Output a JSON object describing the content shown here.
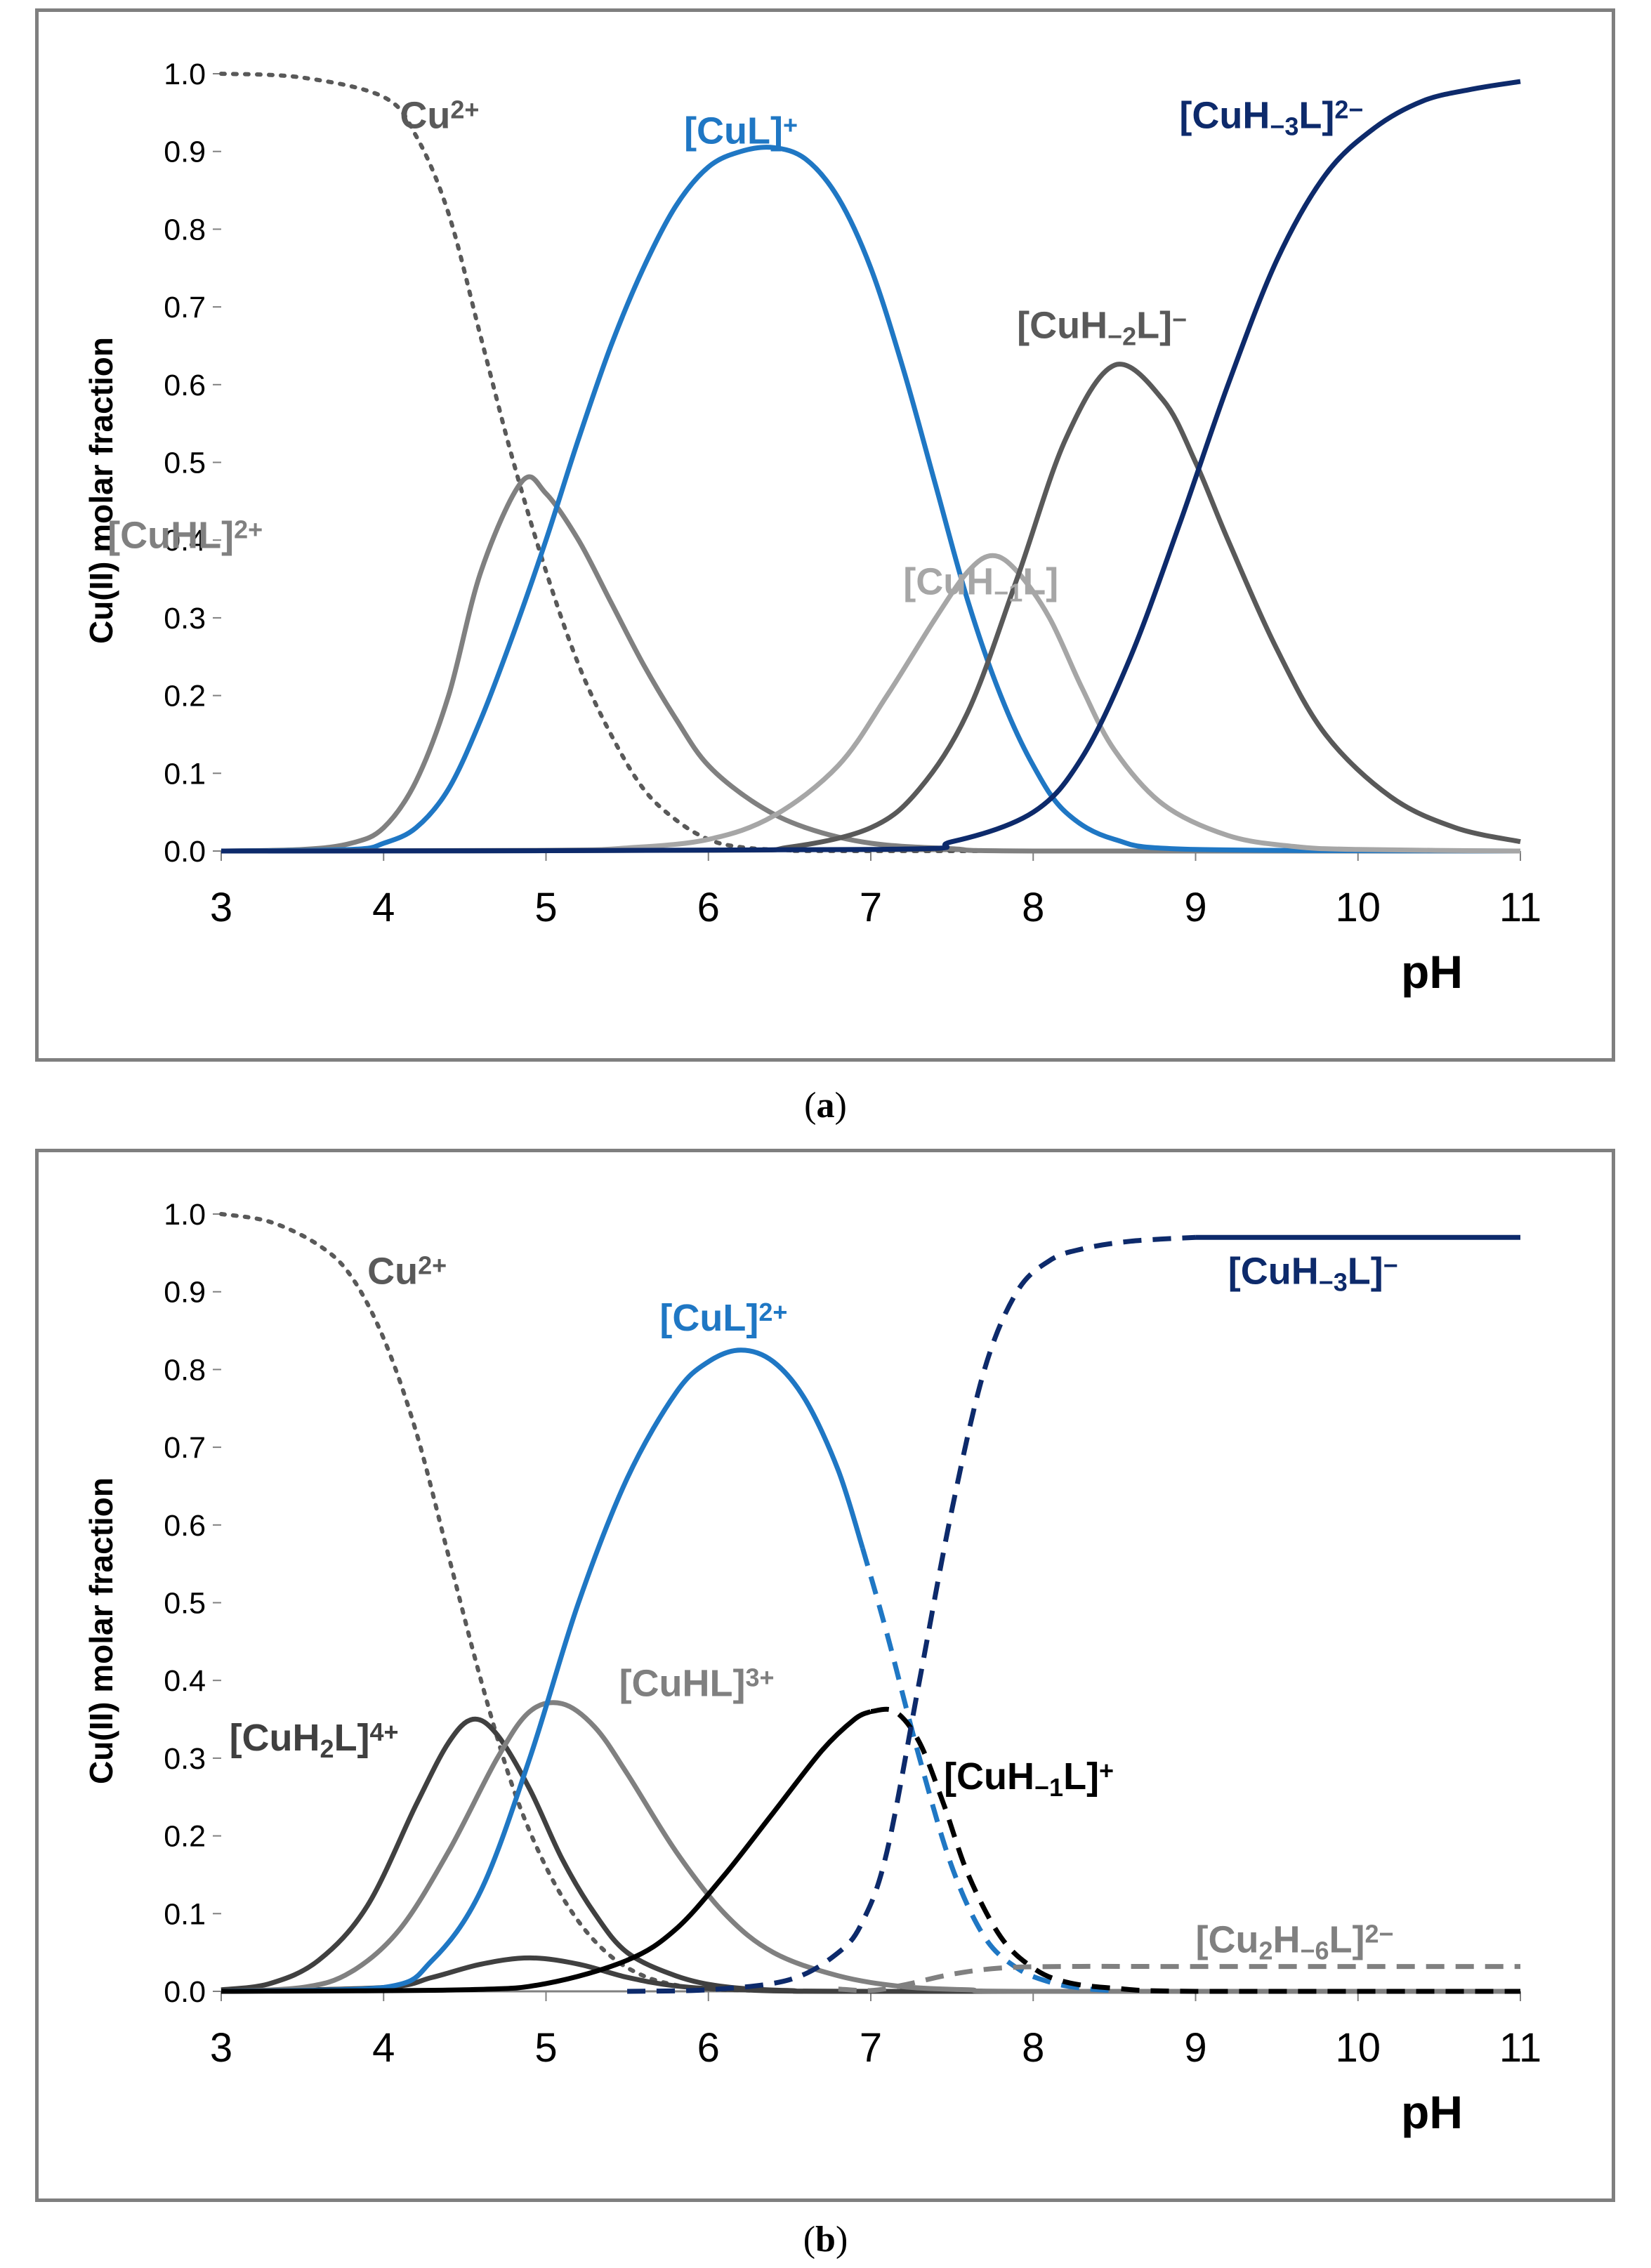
{
  "panels": [
    {
      "caption": "(a)",
      "caption_bold": "a",
      "chart_data": {
        "type": "line",
        "xlabel": "pH",
        "ylabel": "Cu(II) molar fraction",
        "xlim": [
          3,
          11
        ],
        "ylim": [
          0,
          1.0
        ],
        "xticks": [
          "3",
          "4",
          "5",
          "6",
          "7",
          "8",
          "9",
          "10",
          "11"
        ],
        "yticks": [
          "0.0",
          "0.1",
          "0.2",
          "0.3",
          "0.4",
          "0.5",
          "0.6",
          "0.7",
          "0.8",
          "0.9",
          "1.0"
        ],
        "series": [
          {
            "name": "Cu2+",
            "label_main": "Cu",
            "label_sup": "2+",
            "color": "#595959",
            "style": "dotted",
            "x": [
              3,
              3.5,
              4,
              4.2,
              4.4,
              4.6,
              4.8,
              5,
              5.2,
              5.4,
              5.6,
              5.8,
              6,
              6.2,
              6.5,
              7,
              11
            ],
            "y": [
              1.0,
              0.995,
              0.97,
              0.92,
              0.82,
              0.66,
              0.5,
              0.36,
              0.24,
              0.15,
              0.08,
              0.04,
              0.015,
              0.005,
              0.001,
              0,
              0
            ]
          },
          {
            "name": "[CuHL]2+",
            "label_main": "[CuHL]",
            "label_sup": "2+",
            "color": "#808080",
            "style": "solid",
            "x": [
              3,
              3.5,
              3.8,
              4,
              4.2,
              4.4,
              4.6,
              4.85,
              5,
              5.2,
              5.4,
              5.6,
              5.8,
              6,
              6.3,
              6.6,
              7,
              7.5,
              8,
              11
            ],
            "y": [
              0,
              0.002,
              0.01,
              0.03,
              0.09,
              0.2,
              0.36,
              0.475,
              0.46,
              0.4,
              0.32,
              0.24,
              0.17,
              0.11,
              0.06,
              0.03,
              0.01,
              0.003,
              0,
              0
            ]
          },
          {
            "name": "[CuL]+",
            "label_main": "[CuL]",
            "label_sup": "+",
            "color": "#1f77c4",
            "style": "solid",
            "x": [
              3,
              3.8,
              4,
              4.2,
              4.4,
              4.6,
              4.8,
              5,
              5.2,
              5.4,
              5.6,
              5.8,
              6,
              6.2,
              6.4,
              6.6,
              6.8,
              7,
              7.2,
              7.4,
              7.6,
              7.8,
              8,
              8.2,
              8.5,
              9,
              11
            ],
            "y": [
              0,
              0.002,
              0.01,
              0.03,
              0.08,
              0.17,
              0.28,
              0.4,
              0.53,
              0.65,
              0.75,
              0.83,
              0.88,
              0.9,
              0.905,
              0.89,
              0.84,
              0.75,
              0.62,
              0.47,
              0.32,
              0.2,
              0.11,
              0.05,
              0.015,
              0.002,
              0
            ]
          },
          {
            "name": "[CuH-1L]",
            "label_main": "[CuH",
            "label_sub": "−1",
            "label_end": "L]",
            "color": "#a6a6a6",
            "style": "solid",
            "x": [
              3,
              5,
              5.5,
              6,
              6.4,
              6.8,
              7.1,
              7.4,
              7.6,
              7.75,
              7.9,
              8.1,
              8.3,
              8.5,
              8.8,
              9.2,
              9.6,
              10,
              11
            ],
            "y": [
              0,
              0.001,
              0.004,
              0.015,
              0.045,
              0.11,
              0.2,
              0.3,
              0.36,
              0.38,
              0.36,
              0.3,
              0.21,
              0.13,
              0.06,
              0.02,
              0.006,
              0.002,
              0
            ]
          },
          {
            "name": "[CuH-2L]-",
            "label_main": "[CuH",
            "label_sub": "−2",
            "label_end": "L]",
            "label_sup": "−",
            "color": "#595959",
            "style": "solid",
            "x": [
              3,
              6,
              6.5,
              7,
              7.3,
              7.6,
              7.9,
              8.2,
              8.5,
              8.8,
              9,
              9.2,
              9.5,
              9.8,
              10.2,
              10.6,
              11
            ],
            "y": [
              0,
              0.001,
              0.005,
              0.03,
              0.08,
              0.18,
              0.35,
              0.53,
              0.625,
              0.58,
              0.5,
              0.4,
              0.26,
              0.15,
              0.07,
              0.03,
              0.012
            ]
          },
          {
            "name": "[CuH-3L]2-",
            "label_main": "[CuH",
            "label_sub": "−3",
            "label_end": "L]",
            "label_sup": "2−",
            "color": "#0d2a6b",
            "style": "solid",
            "x": [
              3,
              7,
              7.5,
              8,
              8.3,
              8.6,
              8.9,
              9.2,
              9.5,
              9.8,
              10.1,
              10.4,
              10.7,
              11
            ],
            "y": [
              0,
              0.002,
              0.012,
              0.05,
              0.12,
              0.25,
              0.42,
              0.6,
              0.76,
              0.87,
              0.93,
              0.965,
              0.98,
              0.99
            ]
          }
        ]
      }
    },
    {
      "caption": "(b)",
      "caption_bold": "b",
      "chart_data": {
        "type": "line",
        "xlabel": "pH",
        "ylabel": "Cu(II) molar fraction",
        "xlim": [
          3,
          11
        ],
        "ylim": [
          0,
          1.0
        ],
        "xticks": [
          "3",
          "4",
          "5",
          "6",
          "7",
          "8",
          "9",
          "10",
          "11"
        ],
        "yticks": [
          "0.0",
          "0.1",
          "0.2",
          "0.3",
          "0.4",
          "0.5",
          "0.6",
          "0.7",
          "0.8",
          "0.9",
          "1.0"
        ],
        "series": [
          {
            "name": "Cu2+",
            "label_main": "Cu",
            "label_sup": "2+",
            "color": "#595959",
            "style": "dotted",
            "x": [
              3,
              3.3,
              3.6,
              3.8,
              4,
              4.2,
              4.4,
              4.6,
              4.8,
              5,
              5.2,
              5.4,
              5.6,
              5.8,
              6,
              6.3,
              7,
              11
            ],
            "y": [
              1.0,
              0.99,
              0.96,
              0.92,
              0.84,
              0.72,
              0.56,
              0.4,
              0.26,
              0.16,
              0.09,
              0.045,
              0.02,
              0.008,
              0.003,
              0.001,
              0,
              0
            ]
          },
          {
            "name": "[CuH2L]4+",
            "label_main": "[CuH",
            "label_sub": "2",
            "label_end": "L]",
            "label_sup": "4+",
            "color": "#404040",
            "style": "solid",
            "x": [
              3,
              3.3,
              3.6,
              3.9,
              4.2,
              4.4,
              4.55,
              4.7,
              4.9,
              5.1,
              5.3,
              5.5,
              5.8,
              6.1,
              6.5,
              7,
              11
            ],
            "y": [
              0.002,
              0.01,
              0.04,
              0.11,
              0.24,
              0.32,
              0.35,
              0.33,
              0.26,
              0.17,
              0.1,
              0.05,
              0.02,
              0.006,
              0.001,
              0,
              0
            ]
          },
          {
            "name": "minor species",
            "color": "#404040",
            "style": "solid",
            "x": [
              3,
              4,
              4.3,
              4.6,
              4.9,
              5.2,
              5.5,
              5.8,
              6.2,
              7,
              11
            ],
            "y": [
              0,
              0.005,
              0.018,
              0.035,
              0.043,
              0.035,
              0.018,
              0.007,
              0.002,
              0,
              0
            ]
          },
          {
            "name": "[CuHL]3+",
            "label_main": "[CuHL]",
            "label_sup": "3+",
            "color": "#808080",
            "style": "solid",
            "x": [
              3,
              3.5,
              3.8,
              4.1,
              4.4,
              4.7,
              4.9,
              5.1,
              5.3,
              5.5,
              5.8,
              6.1,
              6.4,
              6.8,
              7.2,
              7.6,
              8,
              11
            ],
            "y": [
              0,
              0.005,
              0.025,
              0.08,
              0.18,
              0.3,
              0.36,
              0.37,
              0.34,
              0.28,
              0.18,
              0.1,
              0.05,
              0.02,
              0.006,
              0.002,
              0,
              0
            ]
          },
          {
            "name": "[CuL]2+",
            "label_main": "[CuL]",
            "label_sup": "2+",
            "color": "#1f77c4",
            "style": "solid",
            "x": [
              3,
              4,
              4.3,
              4.6,
              4.9,
              5.2,
              5.5,
              5.8,
              6.0,
              6.2,
              6.4,
              6.6,
              6.8,
              6.95
            ],
            "y": [
              0,
              0.005,
              0.04,
              0.13,
              0.3,
              0.5,
              0.66,
              0.77,
              0.81,
              0.825,
              0.81,
              0.76,
              0.67,
              0.57
            ]
          },
          {
            "name": "[CuL]2+ dashed",
            "color": "#1f77c4",
            "style": "dashed",
            "x": [
              6.95,
              7.1,
              7.3,
              7.5,
              7.7,
              7.9,
              8.1,
              8.3,
              8.5
            ],
            "y": [
              0.57,
              0.46,
              0.3,
              0.16,
              0.07,
              0.03,
              0.012,
              0.004,
              0.001
            ]
          },
          {
            "name": "[CuH-1L]+",
            "label_main": "[CuH",
            "label_sub": "−1",
            "label_end": "L]",
            "label_sup": "+",
            "color": "#000000",
            "style": "solid",
            "x": [
              3,
              4.5,
              5,
              5.5,
              5.8,
              6.1,
              6.4,
              6.7,
              6.9,
              7.0
            ],
            "y": [
              0,
              0.002,
              0.01,
              0.04,
              0.08,
              0.15,
              0.23,
              0.31,
              0.35,
              0.36
            ]
          },
          {
            "name": "[CuH-1L]+ dashed",
            "color": "#000000",
            "style": "dashed",
            "x": [
              7.0,
              7.15,
              7.3,
              7.45,
              7.6,
              7.8,
              8.0,
              8.2,
              8.5,
              9,
              11
            ],
            "y": [
              0.36,
              0.36,
              0.32,
              0.24,
              0.15,
              0.07,
              0.03,
              0.012,
              0.004,
              0,
              0
            ]
          },
          {
            "name": "[CuH-3L]-",
            "label_main": "[CuH",
            "label_sub": "−3",
            "label_end": "L]",
            "label_sup": "−",
            "color": "#0d2a6b",
            "style": "dashed",
            "x": [
              5.5,
              6,
              6.5,
              6.8,
              6.95,
              7.1,
              7.3,
              7.5,
              7.7,
              7.9,
              8.1,
              8.3,
              8.6,
              9
            ],
            "y": [
              0,
              0.002,
              0.015,
              0.05,
              0.09,
              0.18,
              0.4,
              0.62,
              0.8,
              0.9,
              0.94,
              0.955,
              0.965,
              0.97
            ]
          },
          {
            "name": "[CuH-3L]- plateau",
            "color": "#0d2a6b",
            "style": "solid",
            "x": [
              9,
              11
            ],
            "y": [
              0.97,
              0.97
            ]
          },
          {
            "name": "[Cu2H-6L]2-",
            "label_main": "[Cu",
            "label_sub": "2",
            "label_end": "H",
            "label_sub2": "−6",
            "label_end2": "L]",
            "label_sup": "2−",
            "color": "#808080",
            "style": "dashed",
            "x": [
              6.8,
              7.0,
              7.2,
              7.5,
              7.8,
              8.2,
              9,
              11
            ],
            "y": [
              0.003,
              0.001,
              0.008,
              0.022,
              0.03,
              0.032,
              0.032,
              0.032
            ]
          }
        ]
      }
    }
  ]
}
